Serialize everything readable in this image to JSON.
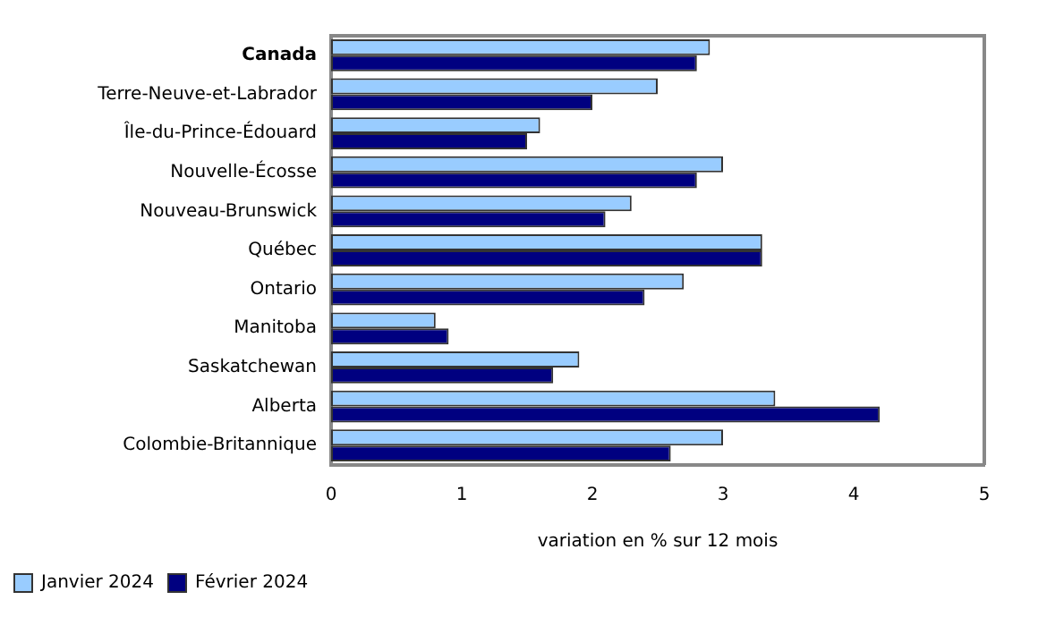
{
  "chart_data": {
    "type": "bar",
    "orientation": "horizontal",
    "xlabel": "variation en % sur 12 mois",
    "categories": [
      "Canada",
      "Terre-Neuve-et-Labrador",
      "Île-du-Prince-Édouard",
      "Nouvelle-Écosse",
      "Nouveau-Brunswick",
      "Québec",
      "Ontario",
      "Manitoba",
      "Saskatchewan",
      "Alberta",
      "Colombie-Britannique"
    ],
    "series": [
      {
        "name": "Janvier 2024",
        "color": "#99ccff",
        "values": [
          2.9,
          2.5,
          1.6,
          3.0,
          2.3,
          3.3,
          2.7,
          0.8,
          1.9,
          3.4,
          3.0
        ]
      },
      {
        "name": "Février 2024",
        "color": "#000080",
        "values": [
          2.8,
          2.0,
          1.5,
          2.8,
          2.1,
          3.3,
          2.4,
          0.9,
          1.7,
          4.2,
          2.6
        ]
      }
    ],
    "xlim": [
      0,
      5
    ],
    "xticks": [
      0,
      1,
      2,
      3,
      4,
      5
    ],
    "grid": false,
    "legend": "bottom"
  }
}
